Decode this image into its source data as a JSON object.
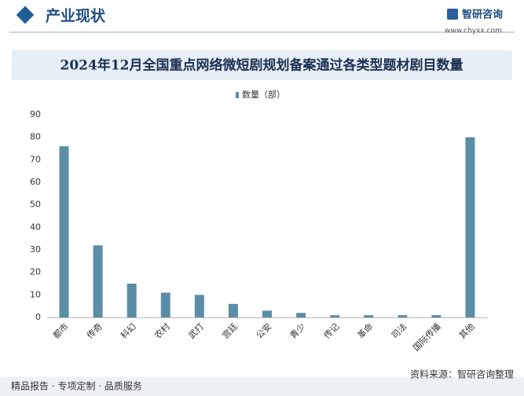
{
  "header": {
    "section": "产业现状",
    "brand": "智研咨询",
    "website": "www.chyxx.com"
  },
  "chart_data": {
    "type": "bar",
    "title": "2024年12月全国重点网络微短剧规划备案通过各类型题材剧目数量",
    "categories": [
      "都市",
      "传奇",
      "科幻",
      "农村",
      "武打",
      "宫廷",
      "公安",
      "青少",
      "传记",
      "革命",
      "司法",
      "国际传播",
      "其他"
    ],
    "series": [
      {
        "name": "数量（部）",
        "color": "#5b8ea6",
        "values": [
          76,
          32,
          15,
          11,
          10,
          6,
          3,
          2,
          1,
          1,
          1,
          1,
          80
        ]
      }
    ],
    "ylim": [
      0,
      90
    ],
    "yticks": [
      0,
      10,
      20,
      30,
      40,
      50,
      60,
      70,
      80,
      90
    ],
    "grid": false
  },
  "footer": {
    "slogan": "精品报告 · 专项定制 · 品质服务",
    "source": "资料来源：智研咨询整理"
  }
}
